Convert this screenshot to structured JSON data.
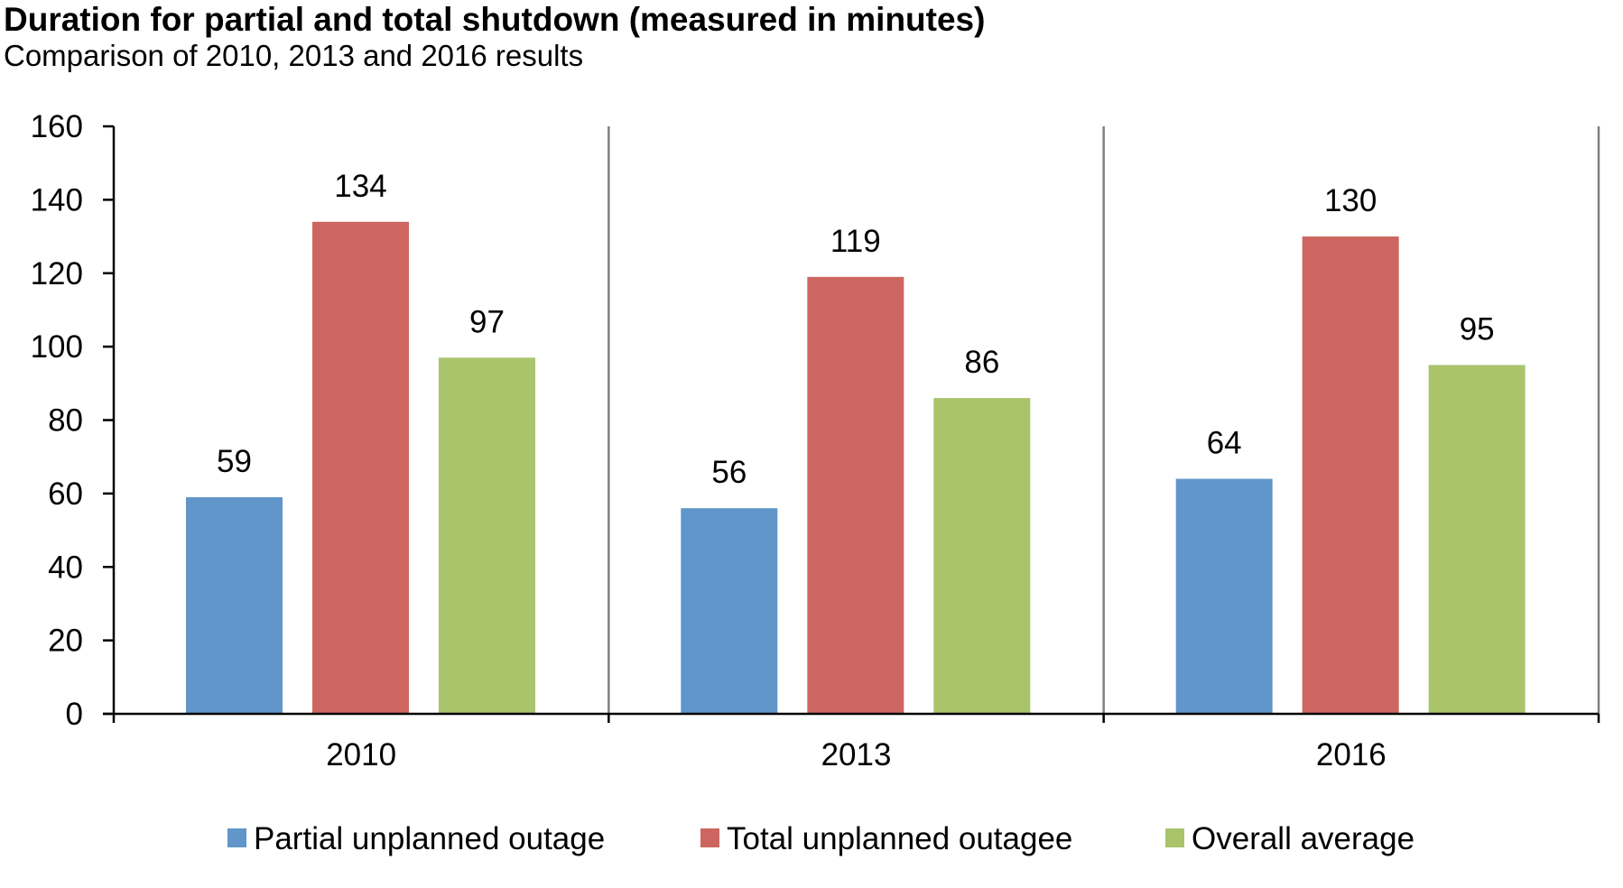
{
  "title": "Duration for partial and total shutdown (measured in minutes)",
  "subtitle": "Comparison of 2010, 2013 and 2016 results",
  "chart_data": {
    "type": "bar",
    "title": "Duration for partial and total shutdown (measured in minutes)",
    "subtitle": "Comparison of 2010, 2013 and 2016 results",
    "xlabel": "",
    "ylabel": "",
    "categories": [
      "2010",
      "2013",
      "2016"
    ],
    "ylim": [
      0,
      160
    ],
    "yticks": [
      0,
      20,
      40,
      60,
      80,
      100,
      120,
      140,
      160
    ],
    "grid": false,
    "legend_position": "bottom",
    "series": [
      {
        "name": "Partial unplanned outage",
        "color": "#6096c9",
        "values": [
          59,
          56,
          64
        ]
      },
      {
        "name": "Total unplanned outagee",
        "color": "#cd6660",
        "values": [
          134,
          119,
          130
        ]
      },
      {
        "name": "Overall average",
        "color": "#a9c46b",
        "values": [
          97,
          86,
          95
        ]
      }
    ],
    "data_labels": true
  }
}
